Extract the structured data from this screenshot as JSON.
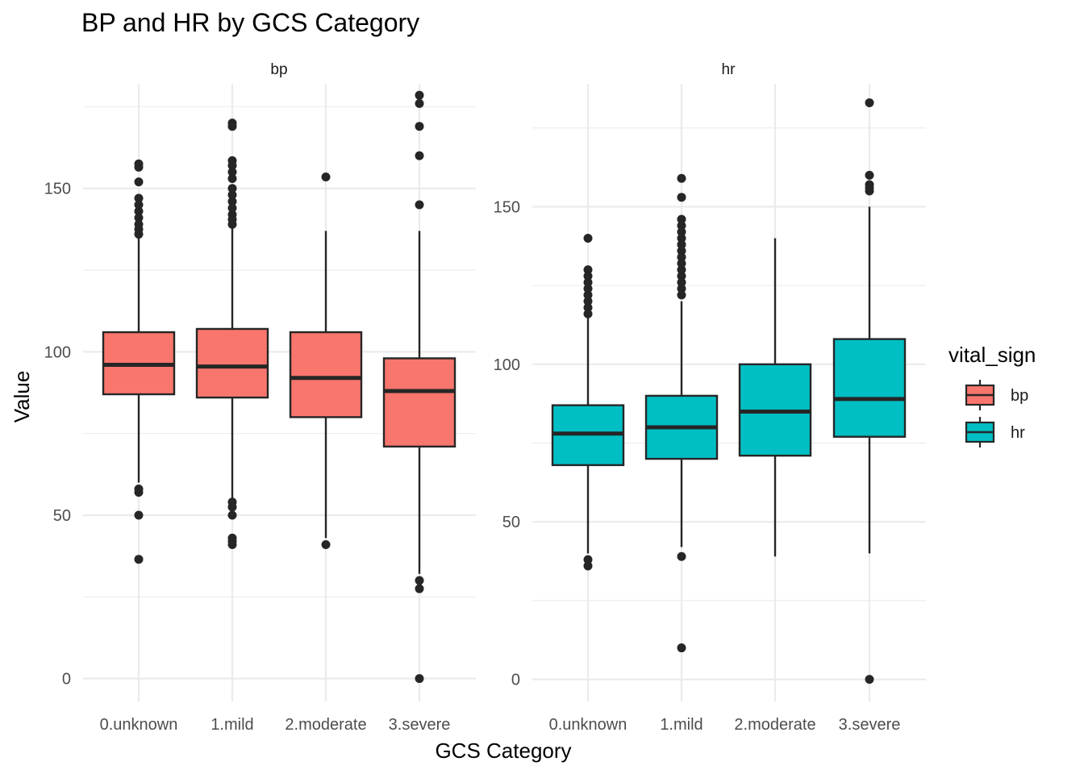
{
  "chart_data": {
    "type": "boxplot",
    "title": "BP and HR by GCS Category",
    "xlabel": "GCS Category",
    "ylabel": "Value",
    "categories": [
      "0.unknown",
      "1.mild",
      "2.moderate",
      "3.severe"
    ],
    "legend": {
      "title": "vital_sign",
      "position": "right",
      "entries": [
        {
          "label": "bp",
          "color": "#F8766D"
        },
        {
          "label": "hr",
          "color": "#00BFC4"
        }
      ]
    },
    "panels": [
      {
        "strip": "bp",
        "fill": "#F8766D",
        "ylim": [
          -7,
          182
        ],
        "yticks": [
          "0",
          "50",
          "100",
          "150"
        ],
        "ytick_values": [
          0,
          50,
          100,
          150
        ],
        "yminor": [
          25,
          75,
          125,
          175
        ],
        "boxes": [
          {
            "category": "0.unknown",
            "whisker_low": 60,
            "q1": 87,
            "median": 96,
            "q3": 106,
            "whisker_high": 135,
            "outliers": [
              157.5,
              156.5,
              152,
              147,
              145,
              143,
              141,
              139,
              137.5,
              136,
              58,
              57,
              50,
              36.5
            ]
          },
          {
            "category": "1.mild",
            "whisker_low": 55,
            "q1": 86,
            "median": 95.5,
            "q3": 107,
            "whisker_high": 138,
            "outliers": [
              170,
              169,
              158.5,
              157,
              155,
              153,
              150,
              148,
              146,
              144,
              142,
              140.5,
              139,
              54,
              52.5,
              50,
              43,
              42,
              41
            ]
          },
          {
            "category": "2.moderate",
            "whisker_low": 43,
            "q1": 80,
            "median": 92,
            "q3": 106,
            "whisker_high": 137,
            "outliers": [
              153.5,
              41
            ]
          },
          {
            "category": "3.severe",
            "whisker_low": 32,
            "q1": 71,
            "median": 88,
            "q3": 98,
            "whisker_high": 137,
            "outliers": [
              178.5,
              176,
              169,
              160,
              145,
              30,
              27.5,
              0
            ]
          }
        ]
      },
      {
        "strip": "hr",
        "fill": "#00BFC4",
        "ylim": [
          -7,
          189
        ],
        "yticks": [
          "0",
          "50",
          "100",
          "150"
        ],
        "ytick_values": [
          0,
          50,
          100,
          150
        ],
        "yminor": [
          25,
          75,
          125,
          175
        ],
        "boxes": [
          {
            "category": "0.unknown",
            "whisker_low": 40,
            "q1": 68,
            "median": 78,
            "q3": 87,
            "whisker_high": 115,
            "outliers": [
              140,
              130,
              128,
              126,
              124,
              122,
              120,
              118,
              116,
              38,
              36
            ]
          },
          {
            "category": "1.mild",
            "whisker_low": 42,
            "q1": 70,
            "median": 80,
            "q3": 90,
            "whisker_high": 120,
            "outliers": [
              159,
              153,
              146,
              144,
              142,
              140,
              138,
              136,
              134,
              132,
              130,
              128,
              126,
              124,
              122,
              39,
              10
            ]
          },
          {
            "category": "2.moderate",
            "whisker_low": 39,
            "q1": 71,
            "median": 85,
            "q3": 100,
            "whisker_high": 140,
            "outliers": []
          },
          {
            "category": "3.severe",
            "whisker_low": 40,
            "q1": 77,
            "median": 89,
            "q3": 108,
            "whisker_high": 150,
            "outliers": [
              183,
              160,
              157,
              156,
              155,
              0
            ]
          }
        ]
      }
    ]
  }
}
